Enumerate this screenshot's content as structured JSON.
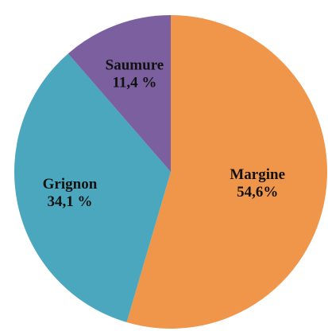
{
  "chart_data": {
    "type": "pie",
    "categories": [
      "Margine",
      "Grignon",
      "Saumure"
    ],
    "values": [
      54.6,
      34.1,
      11.4
    ],
    "value_labels": [
      "54,6%",
      "34,1 %",
      "11,4 %"
    ],
    "colors": [
      "#f0964b",
      "#4ba7be",
      "#7b5f9e"
    ]
  }
}
